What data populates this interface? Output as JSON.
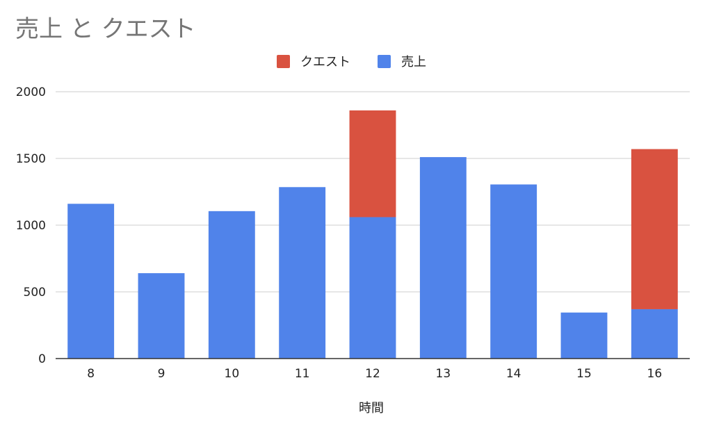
{
  "chart_data": {
    "type": "bar",
    "stacked": true,
    "title": "売上 と クエスト",
    "xlabel": "時間",
    "ylabel": "",
    "categories": [
      "8",
      "9",
      "10",
      "11",
      "12",
      "13",
      "14",
      "15",
      "16"
    ],
    "ylim": [
      0,
      2000
    ],
    "yticks": [
      "0",
      "500",
      "1000",
      "1500",
      "2000"
    ],
    "grid": true,
    "legend_position": "top-center",
    "legend_order": [
      "クエスト",
      "売上"
    ],
    "series": [
      {
        "name": "売上",
        "color": "#5083ea",
        "values": [
          1160,
          640,
          1105,
          1285,
          1060,
          1510,
          1305,
          345,
          370
        ]
      },
      {
        "name": "クエスト",
        "color": "#d95240",
        "values": [
          0,
          0,
          0,
          0,
          800,
          0,
          0,
          0,
          1200
        ]
      }
    ]
  }
}
